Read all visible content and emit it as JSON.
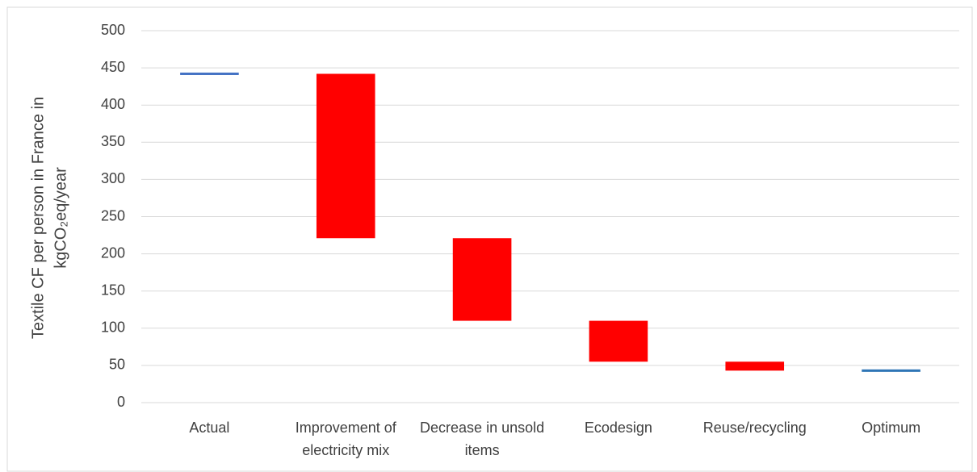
{
  "chart_data": {
    "type": "waterfall",
    "y_label": [
      "Textile CF per person in France in",
      "kgCO₂eq/year"
    ],
    "categories": [
      "Actual",
      "Improvement of electricity mix",
      "Decrease in unsold items",
      "Ecodesign",
      "Reuse/recycling",
      "Optimum"
    ],
    "values": [
      442,
      -221,
      -111,
      -55,
      -12,
      43
    ],
    "totals": [
      true,
      false,
      false,
      false,
      false,
      true
    ],
    "colors": [
      "#4472c4",
      "#ff0000",
      "#ff0000",
      "#ff0000",
      "#ff0000",
      "#2e75b6"
    ],
    "ylim": [
      0,
      500
    ],
    "yticks": [
      0,
      50,
      100,
      150,
      200,
      250,
      300,
      350,
      400,
      450,
      500
    ],
    "grid": true
  }
}
